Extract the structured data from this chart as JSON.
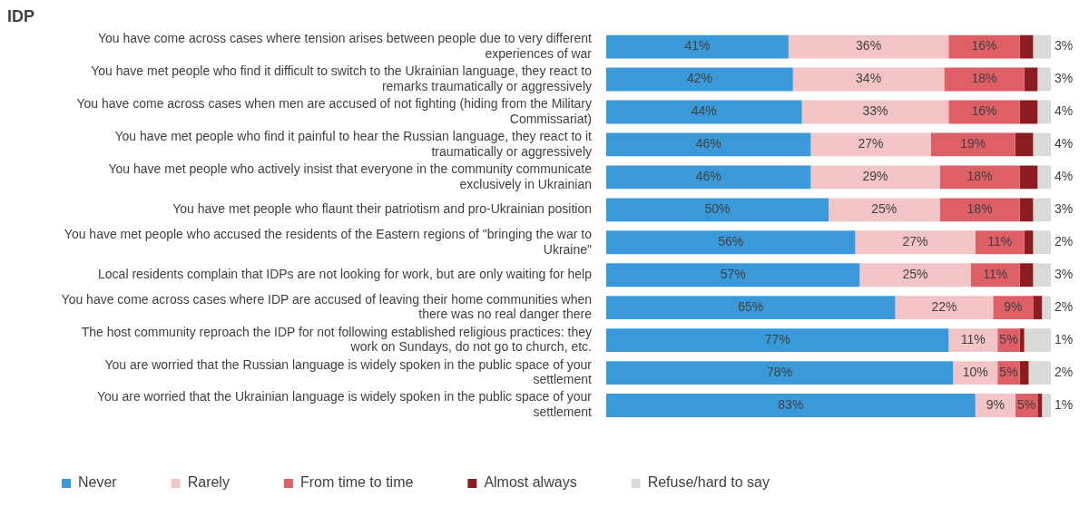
{
  "chart_data": {
    "type": "bar",
    "orientation": "horizontal",
    "stacked": true,
    "title": "IDP",
    "categories": [
      "You have come across cases where tension arises between people due to very different experiences of war",
      "You have met people who find it difficult to switch to the Ukrainian language, they react to remarks traumatically or aggressively",
      "You have come across cases when men are accused of not fighting (hiding from the Military Commissariat)",
      "You have met people who find it painful to hear the Russian language, they react to it traumatically or aggressively",
      "You have met people who actively insist that everyone in the community communicate exclusively in Ukrainian",
      "You have met people who flaunt their patriotism and pro-Ukrainian position",
      "You have met people who accused the residents of the Eastern regions of \"bringing the war to Ukraine\"",
      "Local residents complain that IDPs are not looking for work, but are only waiting for help",
      "You have come across cases where IDP are accused of leaving their home communities when there was no real danger there",
      "The host community reproach the IDP for not following established religious practices: they work on Sundays, do not go to church, etc.",
      "You are worried that the Russian language is widely spoken in the public space of your settlement",
      "You are worried that the Ukrainian language is widely spoken in the public space of your settlement"
    ],
    "series": [
      {
        "name": "Never",
        "color": "#3a9ad9",
        "values": [
          41,
          42,
          44,
          46,
          46,
          50,
          56,
          57,
          65,
          77,
          78,
          83
        ],
        "value_labels": [
          "41%",
          "42%",
          "44%",
          "46%",
          "46%",
          "50%",
          "56%",
          "57%",
          "65%",
          "77%",
          "78%",
          "83%"
        ]
      },
      {
        "name": "Rarely",
        "color": "#f2c4c6",
        "values": [
          36,
          34,
          33,
          27,
          29,
          25,
          27,
          25,
          22,
          11,
          10,
          9
        ],
        "value_labels": [
          "36%",
          "34%",
          "33%",
          "27%",
          "29%",
          "25%",
          "27%",
          "25%",
          "22%",
          "11%",
          "10%",
          "9%"
        ]
      },
      {
        "name": "From time to time",
        "color": "#df5f66",
        "values": [
          16,
          18,
          16,
          19,
          18,
          18,
          11,
          11,
          9,
          5,
          5,
          5
        ],
        "value_labels": [
          "16%",
          "18%",
          "16%",
          "19%",
          "18%",
          "18%",
          "11%",
          "11%",
          "9%",
          "5%",
          "5%",
          "5%"
        ]
      },
      {
        "name": "Almost always",
        "color": "#8b1c22",
        "values": [
          3,
          3,
          4,
          4,
          4,
          3,
          2,
          3,
          2,
          1,
          2,
          1
        ],
        "value_labels": [
          "3%",
          "3%",
          "4%",
          "4%",
          "4%",
          "3%",
          "2%",
          "3%",
          "2%",
          "1%",
          "2%",
          "1%"
        ]
      },
      {
        "name": "Refuse/hard to say",
        "color": "#d9d9d9",
        "values": [
          4,
          3,
          3,
          4,
          3,
          4,
          4,
          4,
          2,
          6,
          5,
          2
        ]
      }
    ],
    "legend": "bottom",
    "grid": false
  }
}
